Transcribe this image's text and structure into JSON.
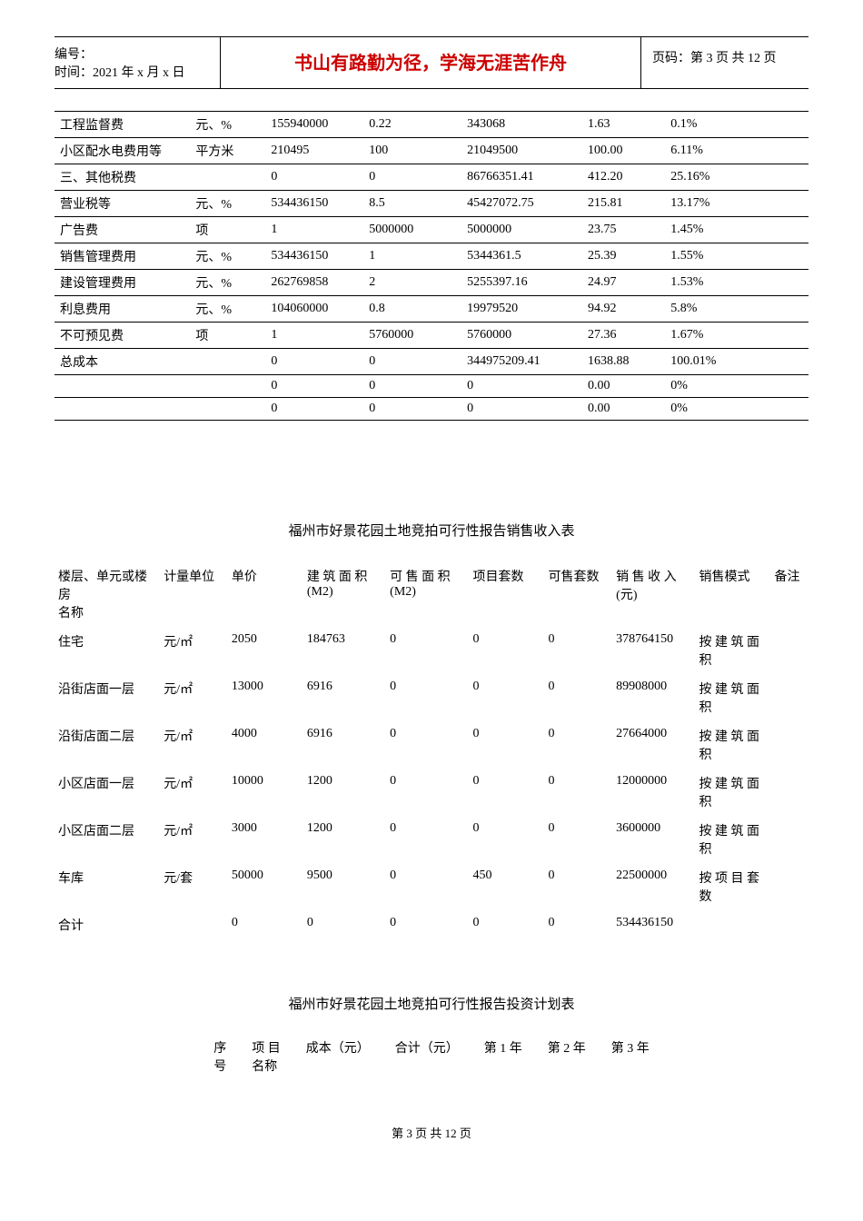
{
  "header": {
    "bianhao_label": "编号：",
    "time_label": "时间：2021 年 x 月 x 日",
    "center_text": "书山有路勤为径，学海无涯苦作舟",
    "page_label": "页码：第 3 页 共 12 页"
  },
  "table1_rows": [
    [
      "工程监督费",
      "元、%",
      "155940000",
      "0.22",
      "343068",
      "1.63",
      "0.1%"
    ],
    [
      "小区配水电费用等",
      "平方米",
      "210495",
      "100",
      "21049500",
      "100.00",
      "6.11%"
    ],
    [
      "三、其他税费",
      "",
      "0",
      "0",
      "86766351.41",
      "412.20",
      "25.16%"
    ],
    [
      "营业税等",
      "元、%",
      "534436150",
      "8.5",
      "45427072.75",
      "215.81",
      "13.17%"
    ],
    [
      "广告费",
      "项",
      "1",
      "5000000",
      "5000000",
      "23.75",
      "1.45%"
    ],
    [
      "销售管理费用",
      "元、%",
      "534436150",
      "1",
      "5344361.5",
      "25.39",
      "1.55%"
    ],
    [
      "建设管理费用",
      "元、%",
      "262769858",
      "2",
      "5255397.16",
      "24.97",
      "1.53%"
    ],
    [
      "利息费用",
      "元、%",
      "104060000",
      "0.8",
      "19979520",
      "94.92",
      "5.8%"
    ],
    [
      "不可预见费",
      "项",
      "1",
      "5760000",
      "5760000",
      "27.36",
      "1.67%"
    ],
    [
      "总成本",
      "",
      "0",
      "0",
      "344975209.41",
      "1638.88",
      "100.01%"
    ],
    [
      "",
      "",
      "0",
      "0",
      "0",
      "0.00",
      "0%"
    ],
    [
      "",
      "",
      "0",
      "0",
      "0",
      "0.00",
      "0%"
    ]
  ],
  "section2_title": "福州市好景花园土地竞拍可行性报告销售收入表",
  "table2_headers": [
    "楼层、单元或楼房名称",
    "计量单位",
    "单价",
    "建筑面积(M2)",
    "可售面积(M2)",
    "项目套数",
    "可售套数",
    "销售收入(元)",
    "销售模式",
    "备注"
  ],
  "table2_rows": [
    [
      "住宅",
      "元/㎡",
      "2050",
      "184763",
      "0",
      "0",
      "0",
      "378764150",
      "按建筑面积"
    ],
    [
      "沿街店面一层",
      "元/㎡",
      "13000",
      "6916",
      "0",
      "0",
      "0",
      "89908000",
      "按建筑面积"
    ],
    [
      "沿街店面二层",
      "元/㎡",
      "4000",
      "6916",
      "0",
      "0",
      "0",
      "27664000",
      "按建筑面积"
    ],
    [
      "小区店面一层",
      "元/㎡",
      "10000",
      "1200",
      "0",
      "0",
      "0",
      "12000000",
      "按建筑面积"
    ],
    [
      "小区店面二层",
      "元/㎡",
      "3000",
      "1200",
      "0",
      "0",
      "0",
      "3600000",
      "按建筑面积"
    ],
    [
      "车库",
      "元/套",
      "50000",
      "9500",
      "0",
      "450",
      "0",
      "22500000",
      "按项目套数"
    ],
    [
      "合计",
      "",
      "0",
      "0",
      "0",
      "0",
      "0",
      "534436150",
      ""
    ]
  ],
  "section3_title": "福州市好景花园土地竞拍可行性报告投资计划表",
  "table3_headers": [
    "序号",
    "项目名称",
    "成本（元）",
    "合计（元）",
    "第 1 年",
    "第 2 年",
    "第 3 年"
  ],
  "footer_text": "第 3 页 共 12 页",
  "table1_col_widths": [
    "18%",
    "10%",
    "13%",
    "13%",
    "16%",
    "11%",
    "19%"
  ],
  "table2_col_widths": [
    "14%",
    "9%",
    "10%",
    "11%",
    "11%",
    "10%",
    "9%",
    "11%",
    "10%",
    "5%"
  ]
}
